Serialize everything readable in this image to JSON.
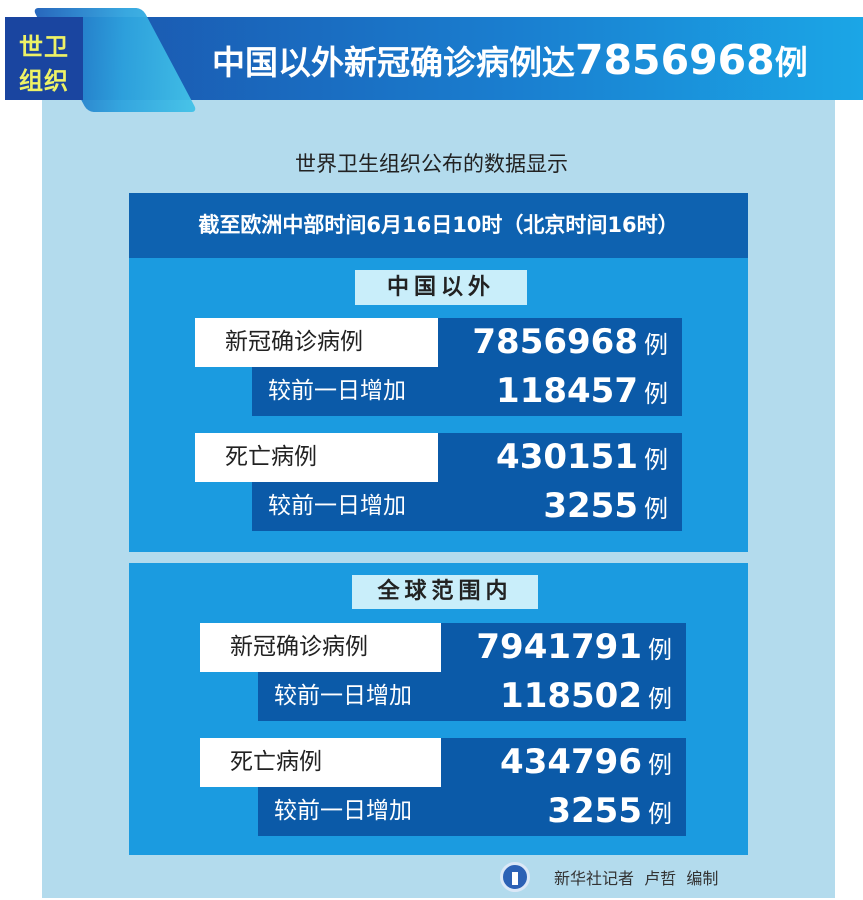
{
  "header": {
    "tag_line1": "世卫",
    "tag_line2": "组织",
    "headline_text": "中国以外新冠确诊病例达",
    "headline_number": "7856968",
    "headline_unit": "例"
  },
  "subtitle": "世界卫生组织公布的数据显示",
  "date_bar": "截至欧洲中部时间6月16日10时（北京时间16时）",
  "sections": [
    {
      "title": "中国以外",
      "rows": [
        {
          "label": "新冠确诊病例",
          "value": "7856968",
          "unit": "例",
          "sub_label": "较前一日增加",
          "sub_value": "118457",
          "sub_unit": "例"
        },
        {
          "label": "死亡病例",
          "value": "430151",
          "unit": "例",
          "sub_label": "较前一日增加",
          "sub_value": "3255",
          "sub_unit": "例"
        }
      ]
    },
    {
      "title": "全球范围内",
      "rows": [
        {
          "label": "新冠确诊病例",
          "value": "7941791",
          "unit": "例",
          "sub_label": "较前一日增加",
          "sub_value": "118502",
          "sub_unit": "例"
        },
        {
          "label": "死亡病例",
          "value": "434796",
          "unit": "例",
          "sub_label": "较前一日增加",
          "sub_value": "3255",
          "sub_unit": "例"
        }
      ]
    }
  ],
  "footer": {
    "credit": "新华社记者  卢哲  编制",
    "logo_icon": "xinhua-logo-icon"
  },
  "colors": {
    "banner": "#1a7fd0",
    "section": "#1b9be0",
    "dark": "#0b5aa8",
    "panel": "#b3dbed",
    "tag": "#eef266"
  }
}
